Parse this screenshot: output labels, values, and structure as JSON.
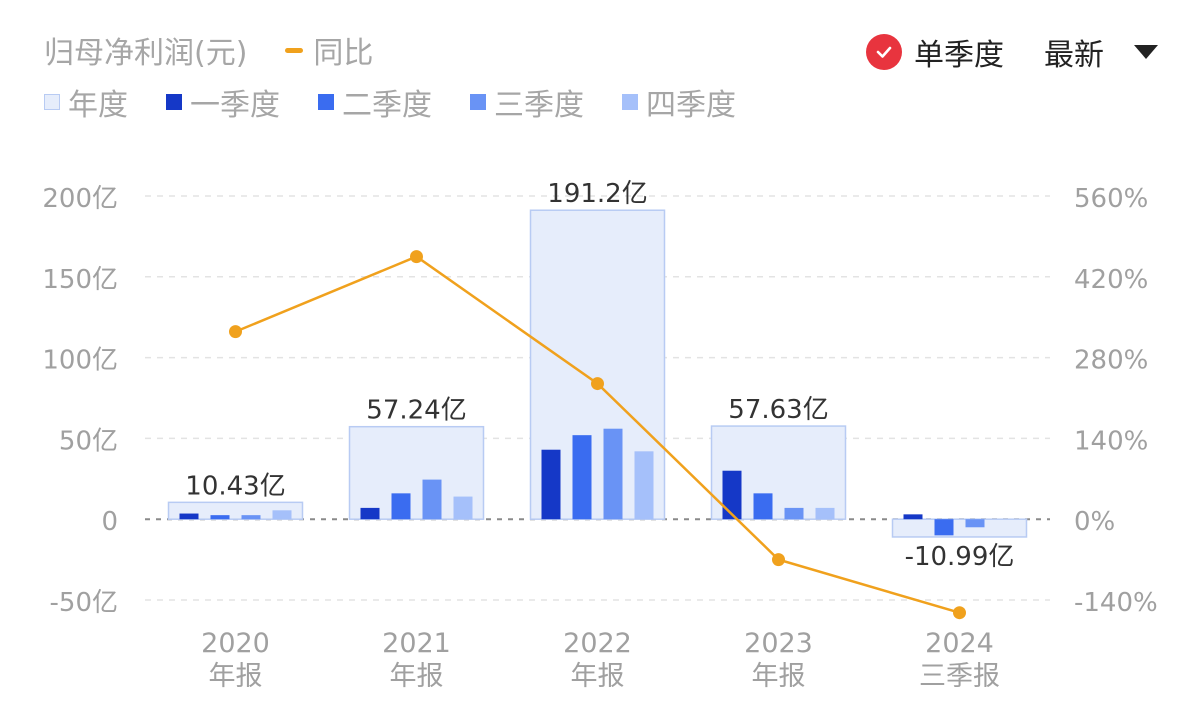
{
  "header": {
    "metric_label": "归母净利润(元)",
    "yoy_label": "同比",
    "mode_label": "单季度",
    "latest_label": "最新"
  },
  "legend": [
    {
      "label": "年度",
      "color": "#e6edfb"
    },
    {
      "label": "一季度",
      "color": "#1538c7"
    },
    {
      "label": "二季度",
      "color": "#3a6cf0"
    },
    {
      "label": "三季度",
      "color": "#6993f5"
    },
    {
      "label": "四季度",
      "color": "#a5c0fa"
    }
  ],
  "colors": {
    "line": "#f0a11d",
    "annual_fill": "#e6edfb",
    "annual_stroke": "#b8cbf3",
    "accent_red": "#e8343e"
  },
  "chart_data": {
    "type": "bar",
    "categories": [
      [
        "2020",
        "年报"
      ],
      [
        "2021",
        "年报"
      ],
      [
        "2022",
        "年报"
      ],
      [
        "2023",
        "年报"
      ],
      [
        "2024",
        "三季报"
      ]
    ],
    "annual_values": [
      10.43,
      57.24,
      191.2,
      57.63,
      -10.99
    ],
    "annual_labels": [
      "10.43亿",
      "57.24亿",
      "191.2亿",
      "57.63亿",
      "-10.99亿"
    ],
    "series": [
      {
        "name": "一季度",
        "values": [
          3.5,
          7,
          43,
          30,
          3
        ]
      },
      {
        "name": "二季度",
        "values": [
          2.5,
          16,
          52,
          16,
          -10
        ]
      },
      {
        "name": "三季度",
        "values": [
          2.5,
          24.5,
          56,
          7,
          -5
        ]
      },
      {
        "name": "四季度",
        "values": [
          5.5,
          14,
          42,
          7,
          null
        ]
      }
    ],
    "yoy": {
      "name": "同比",
      "values": [
        325,
        455,
        235,
        -70,
        -162
      ]
    },
    "ylim_left": [
      -50,
      200
    ],
    "ylim_right": [
      -140,
      560
    ],
    "left_ticks": [
      {
        "v": 200,
        "label": "200亿"
      },
      {
        "v": 150,
        "label": "150亿"
      },
      {
        "v": 100,
        "label": "100亿"
      },
      {
        "v": 50,
        "label": "50亿"
      },
      {
        "v": 0,
        "label": "0"
      },
      {
        "v": -50,
        "label": "-50亿"
      }
    ],
    "right_ticks": [
      {
        "v": 560,
        "label": "560%"
      },
      {
        "v": 420,
        "label": "420%"
      },
      {
        "v": 280,
        "label": "280%"
      },
      {
        "v": 140,
        "label": "140%"
      },
      {
        "v": 0,
        "label": "0%"
      },
      {
        "v": -140,
        "label": "-140%"
      }
    ],
    "grid": true
  }
}
